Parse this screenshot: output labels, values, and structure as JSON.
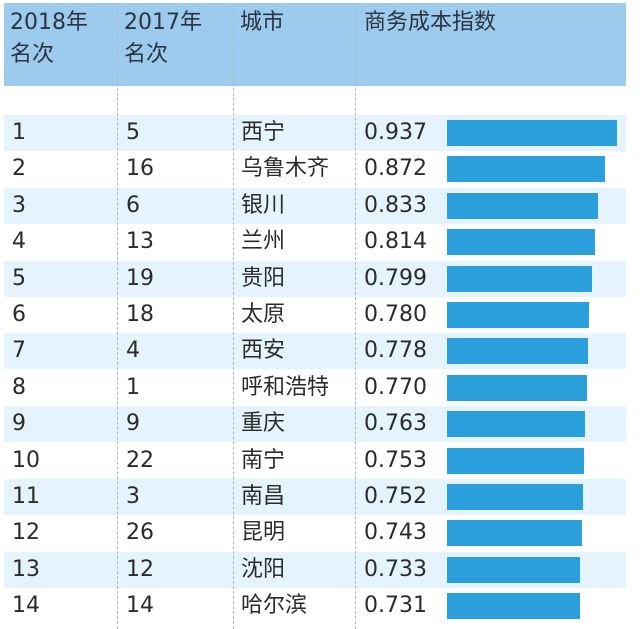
{
  "header": {
    "col1": [
      "2018年",
      "名次"
    ],
    "col2": [
      "2017年",
      "名次"
    ],
    "col3": "城市",
    "col4": "商务成本指数"
  },
  "colors": {
    "header_bg": "#9ccbee",
    "row_shade": "#e4f3fc",
    "bar": "#2a9fdc"
  },
  "chart_data": {
    "type": "table",
    "columns": [
      "2018年名次",
      "2017年名次",
      "城市",
      "商务成本指数"
    ],
    "rows": [
      {
        "rank2018": "1",
        "rank2017": "5",
        "city": "西宁",
        "index": 0.937
      },
      {
        "rank2018": "2",
        "rank2017": "16",
        "city": "乌鲁木齐",
        "index": 0.872
      },
      {
        "rank2018": "3",
        "rank2017": "6",
        "city": "银川",
        "index": 0.833
      },
      {
        "rank2018": "4",
        "rank2017": "13",
        "city": "兰州",
        "index": 0.814
      },
      {
        "rank2018": "5",
        "rank2017": "19",
        "city": "贵阳",
        "index": 0.799
      },
      {
        "rank2018": "6",
        "rank2017": "18",
        "city": "太原",
        "index": 0.78
      },
      {
        "rank2018": "7",
        "rank2017": "4",
        "city": "西安",
        "index": 0.778
      },
      {
        "rank2018": "8",
        "rank2017": "1",
        "city": "呼和浩特",
        "index": 0.77
      },
      {
        "rank2018": "9",
        "rank2017": "9",
        "city": "重庆",
        "index": 0.763
      },
      {
        "rank2018": "10",
        "rank2017": "22",
        "city": "南宁",
        "index": 0.753
      },
      {
        "rank2018": "11",
        "rank2017": "3",
        "city": "南昌",
        "index": 0.752
      },
      {
        "rank2018": "12",
        "rank2017": "26",
        "city": "昆明",
        "index": 0.743
      },
      {
        "rank2018": "13",
        "rank2017": "12",
        "city": "沈阳",
        "index": 0.733
      },
      {
        "rank2018": "14",
        "rank2017": "14",
        "city": "哈尔滨",
        "index": 0.731
      }
    ],
    "bar_series": "index",
    "bar_range": [
      0,
      0.937
    ]
  }
}
